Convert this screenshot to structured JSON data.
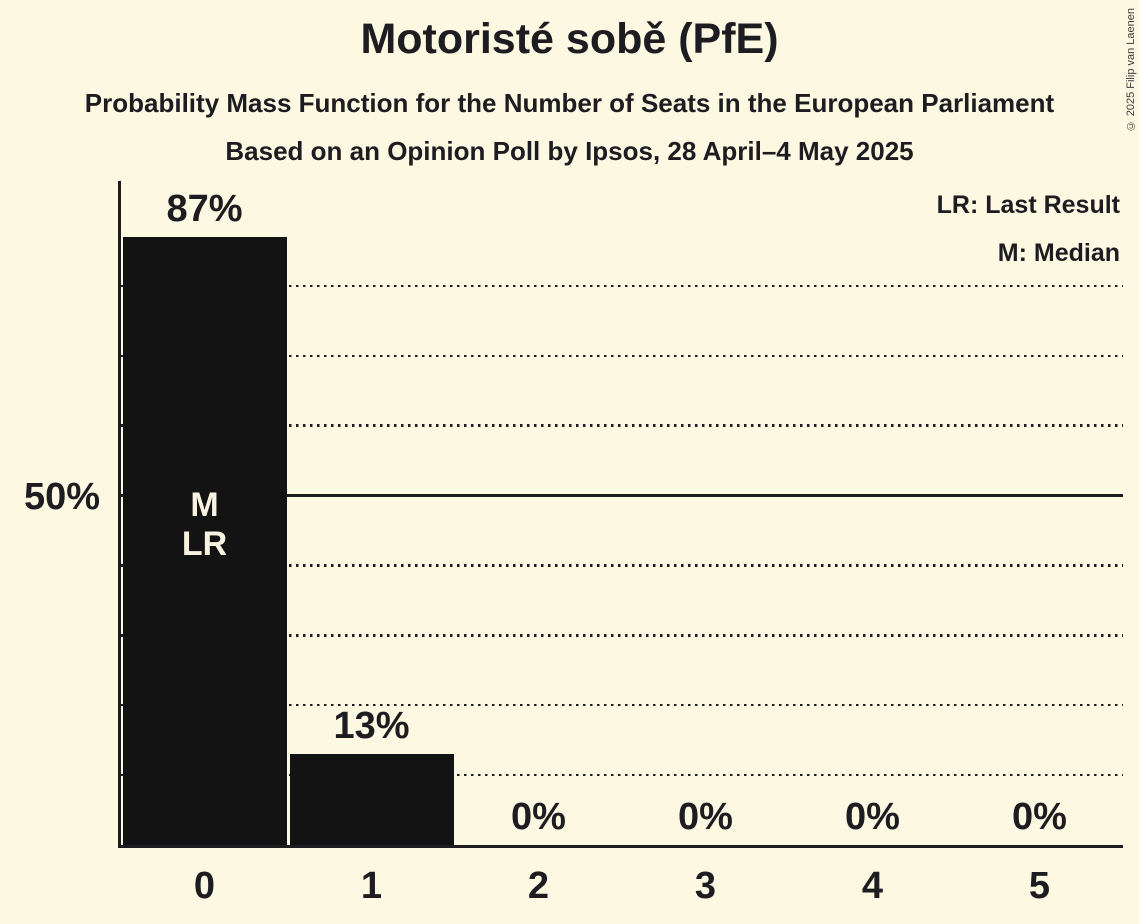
{
  "header": {
    "title": "Motoristé sobě (PfE)",
    "subtitle1": "Probability Mass Function for the Number of Seats in the European Parliament",
    "subtitle2": "Based on an Opinion Poll by Ipsos, 28 April–4 May 2025"
  },
  "legend": {
    "lr_label": "LR: Last Result",
    "m_label": "M: Median"
  },
  "copyright": {
    "text": "© 2025 Filip van Laenen"
  },
  "chart_data": {
    "type": "bar",
    "title": "Motoristé sobě (PfE)",
    "categories": [
      "0",
      "1",
      "2",
      "3",
      "4",
      "5"
    ],
    "values": [
      87,
      13,
      0,
      0,
      0,
      0
    ],
    "value_labels": [
      "87%",
      "13%",
      "0%",
      "0%",
      "0%",
      "0%"
    ],
    "bar_annotations": [
      [
        "M",
        "LR"
      ],
      [],
      [],
      [],
      [],
      []
    ],
    "y_axis": {
      "label": "50%",
      "label_value": 50,
      "ylim": [
        0,
        95
      ],
      "dotted_gridlines_pct": [
        10,
        20,
        30,
        40,
        60,
        70,
        80
      ],
      "solid_gridline_pct": 50
    },
    "grid": "horizontal dotted every 10%, solid at 50%",
    "legend_position": "top-right",
    "colors": {
      "background": "#FCF8E2",
      "bar": "#131313",
      "text": "#1C1C21",
      "bar_label_text": "#F8F3DE"
    }
  }
}
